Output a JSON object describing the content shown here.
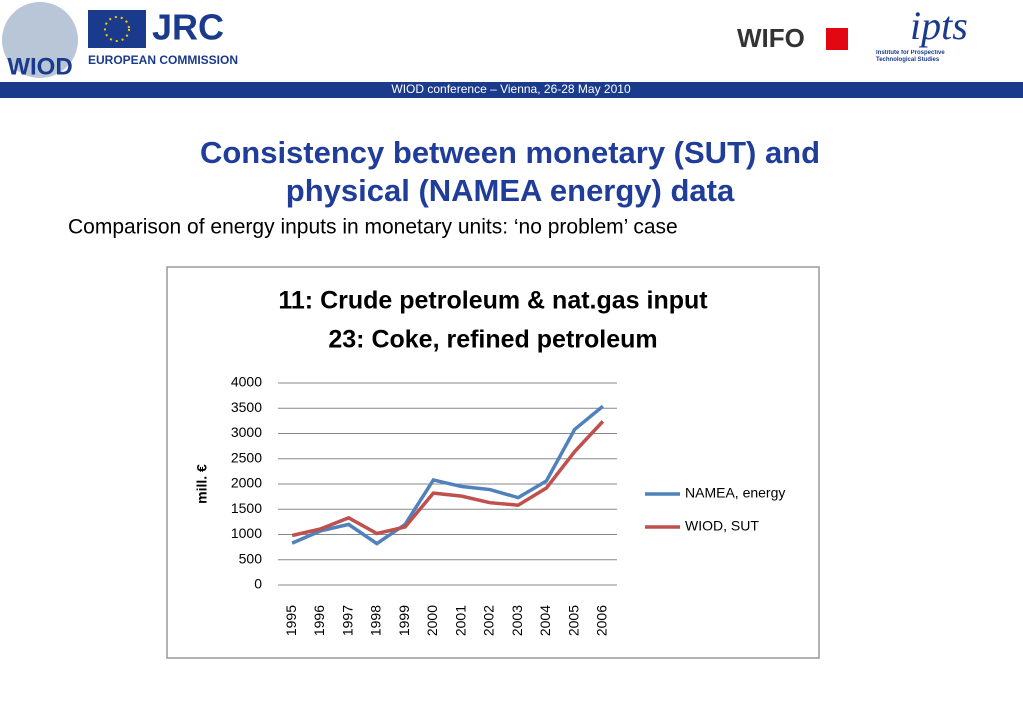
{
  "header": {
    "logo_left": "WIOD",
    "jrc": "JRC",
    "commission": "EUROPEAN COMMISSION",
    "wifo": "WIFO",
    "ipts": "ipts",
    "ipts_sub": "Institute for Prospective Technological Studies",
    "banner": "WIOD conference – Vienna, 26-28 May 2010"
  },
  "slide": {
    "title_line1": "Consistency between monetary (SUT) and",
    "title_line2": "physical (NAMEA energy) data",
    "subtitle": "Comparison of energy inputs in monetary units: ‘no problem’ case"
  },
  "chart_data": {
    "type": "line",
    "title": "11: Crude petroleum & nat.gas input",
    "subtitle": "23: Coke, refined petroleum",
    "ylabel": "mill. €",
    "categories": [
      "1995",
      "1996",
      "1997",
      "1998",
      "1999",
      "2000",
      "2001",
      "2002",
      "2003",
      "2004",
      "2005",
      "2006"
    ],
    "series": [
      {
        "name": "NAMEA, energy",
        "color": "#4f81bd",
        "values": [
          830,
          1070,
          1200,
          820,
          1200,
          2080,
          1950,
          1890,
          1730,
          2060,
          3080,
          3540
        ]
      },
      {
        "name": "WIOD, SUT",
        "color": "#c0504d",
        "values": [
          980,
          1110,
          1330,
          1020,
          1150,
          1820,
          1760,
          1630,
          1580,
          1920,
          2640,
          3240
        ]
      }
    ],
    "ylim": [
      0,
      4000
    ],
    "yticks": [
      0,
      500,
      1000,
      1500,
      2000,
      2500,
      3000,
      3500,
      4000
    ],
    "grid": true,
    "legend": "right"
  }
}
